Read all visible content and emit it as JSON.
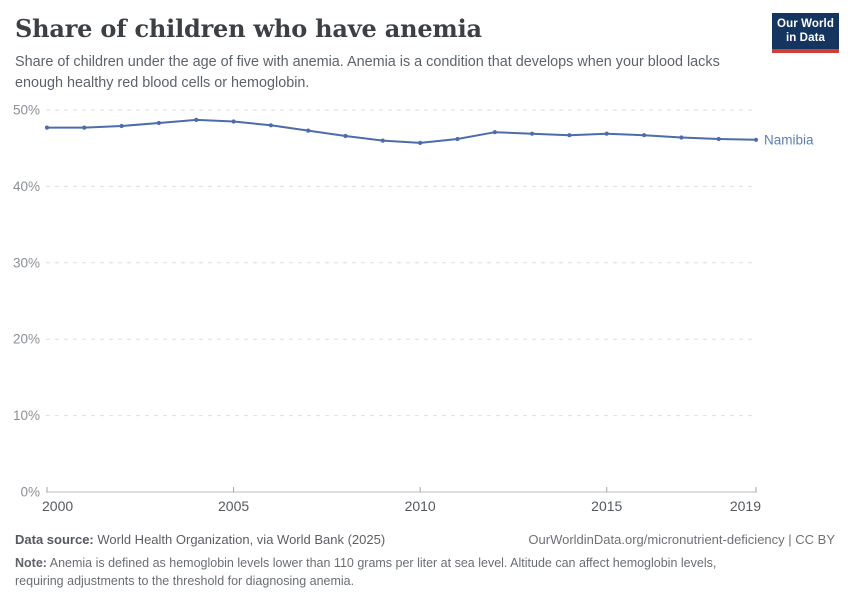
{
  "header": {
    "title": "Share of children who have anemia",
    "subtitle": "Share of children under the age of five with anemia. Anemia is a condition that develops when your blood lacks enough healthy red blood cells or hemoglobin.",
    "logo_line1": "Our World",
    "logo_line2": "in Data"
  },
  "chart_data": {
    "type": "line",
    "title": "Share of children who have anemia",
    "x": [
      2000,
      2001,
      2002,
      2003,
      2004,
      2005,
      2006,
      2007,
      2008,
      2009,
      2010,
      2011,
      2012,
      2013,
      2014,
      2015,
      2016,
      2017,
      2018,
      2019
    ],
    "series": [
      {
        "name": "Namibia",
        "color": "#4C6CAB",
        "label_color": "#5E7EB8",
        "values": [
          47.7,
          47.7,
          47.9,
          48.3,
          48.7,
          48.5,
          48.0,
          47.3,
          46.6,
          46.0,
          45.7,
          46.2,
          47.1,
          46.9,
          46.7,
          46.9,
          46.7,
          46.4,
          46.2,
          46.1
        ]
      }
    ],
    "xlabel": "",
    "ylabel": "",
    "unit": "%",
    "xlim": [
      2000,
      2019
    ],
    "ylim": [
      0,
      50
    ],
    "x_ticks": [
      2000,
      2005,
      2010,
      2015,
      2019
    ],
    "y_ticks": [
      {
        "value": 0,
        "label": "0%"
      },
      {
        "value": 10,
        "label": "10%"
      },
      {
        "value": 20,
        "label": "20%"
      },
      {
        "value": 30,
        "label": "30%"
      },
      {
        "value": 40,
        "label": "40%"
      },
      {
        "value": 50,
        "label": "50%"
      }
    ],
    "grid": "horizontal-dashed",
    "legend_position": "end-of-line-label"
  },
  "footer": {
    "datasource_label": "Data source:",
    "datasource_value": " World Health Organization, via World Bank (2025)",
    "link": "OurWorldinData.org/micronutrient-deficiency | CC BY",
    "note_label": "Note:",
    "note_value": " Anemia is defined as hemoglobin levels lower than 110 grams per liter at sea level. Altitude can affect hemoglobin levels, requiring adjustments to the threshold for diagnosing anemia."
  },
  "colors": {
    "series": "#4C6CAB",
    "series_label": "#5E7EB8",
    "logo_bg": "#14355F",
    "logo_stripe": "#CE3F36",
    "title_text": "#3b4045",
    "gridline": "#dcdee1",
    "axis_line": "#b9bcc0",
    "y_tick_label": "#8b9096",
    "x_tick_label": "#55595e"
  }
}
